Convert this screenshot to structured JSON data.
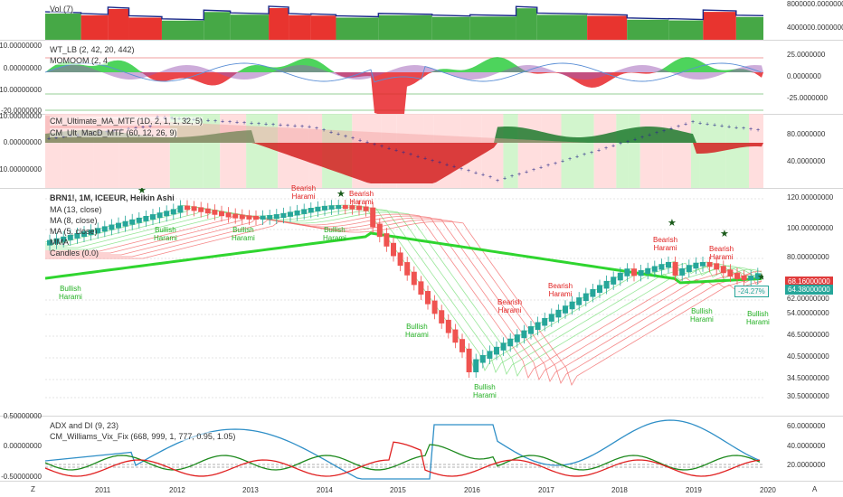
{
  "panes": {
    "volume": {
      "legend": "Vol (7)",
      "right_ticks": [
        "8000000.00000000",
        "4000000.00000000"
      ]
    },
    "wavetrend": {
      "legend1": "WT_LB (2, 42, 20, 4",
      "legend1b": "42)",
      "legend2": "MOMO",
      "legend2b": "OM (2, 4",
      "left_ticks": [
        "10.00000000",
        "0.00000000",
        "-10.00000000",
        "-20.0000000"
      ],
      "right_ticks": [
        "25.0000000",
        "0.0000000",
        "-25.0000000"
      ]
    },
    "macd": {
      "legend1": "CM_Ultimate_MA_MTF (1D, 2, 1, 1, 32, 5)",
      "legend2": "CM_Ult_MacD_MTF (60, 12, 26, 9)",
      "left_ticks": [
        "10.00000000",
        "0.00000000",
        "-10.00000000"
      ],
      "right_ticks": [
        "80.0000000",
        "40.0000000"
      ]
    },
    "price": {
      "title": "BRN1!, 1M, ICEEUR, Heikin Ashi",
      "lines": [
        "MA (13, close)",
        "MA (8, close)",
        "MA (5, close)",
        "MMA",
        "Candles (0.0)"
      ],
      "right_ticks": [
        "120.00000000",
        "100.00000000",
        "80.00000000",
        "62.00000000",
        "54.00000000",
        "46.50000000",
        "40.50000000",
        "34.50000000",
        "30.50000000"
      ],
      "tag_price": "68.16000000",
      "tag_pct": "-24.27%",
      "tag_price2": "64.38000000",
      "labels": [
        {
          "t": "Bearish\nHarami",
          "kind": "bear",
          "l": 322,
          "top": 204
        },
        {
          "t": "Bearish\nHarami",
          "kind": "bear",
          "l": 386,
          "top": 210
        },
        {
          "t": "Bullish\nHarami",
          "kind": "bull",
          "l": 170,
          "top": 250
        },
        {
          "t": "Bullish\nHarami",
          "kind": "bull",
          "l": 256,
          "top": 250
        },
        {
          "t": "Bullish\nHarami",
          "kind": "bull",
          "l": 357,
          "top": 250
        },
        {
          "t": "Bullish\nHarami",
          "kind": "bull",
          "l": 65,
          "top": 315
        },
        {
          "t": "Bullish\nHarami",
          "kind": "bull",
          "l": 448,
          "top": 357
        },
        {
          "t": "Bearish\nHarami",
          "kind": "bear",
          "l": 550,
          "top": 330
        },
        {
          "t": "Bearish\nHarami",
          "kind": "bear",
          "l": 606,
          "top": 312
        },
        {
          "t": "Bullish\nHarami",
          "kind": "bull",
          "l": 523,
          "top": 424
        },
        {
          "t": "Bearish\nHarami",
          "kind": "bear",
          "l": 722,
          "top": 261
        },
        {
          "t": "Bearish\nHarami",
          "kind": "bear",
          "l": 784,
          "top": 271
        },
        {
          "t": "Bullish\nHarami",
          "kind": "bull",
          "l": 763,
          "top": 340
        },
        {
          "t": "Bullish\nHarami",
          "kind": "bull",
          "l": 825,
          "top": 343
        }
      ]
    },
    "adx": {
      "legend1": "ADX and DI (9, 23)",
      "legend2": "CM_Williams_Vix_Fix (668, 999, 1, 777, 0.95, 1.05)",
      "left_ticks": [
        "0.50000000",
        "0.00000000",
        "-0.50000000"
      ],
      "right_ticks": [
        "60.0000000",
        "40.0000000",
        "20.0000000"
      ]
    }
  },
  "xaxis": [
    "2011",
    "2012",
    "2013",
    "2014",
    "2015",
    "2016",
    "2017",
    "2018",
    "2019",
    "2020"
  ],
  "corner_left": "Z",
  "corner_right": "A",
  "colors": {
    "green": "#3aa63a",
    "red": "#f23b35",
    "up": "#26a69a",
    "down": "#ef5350"
  }
}
